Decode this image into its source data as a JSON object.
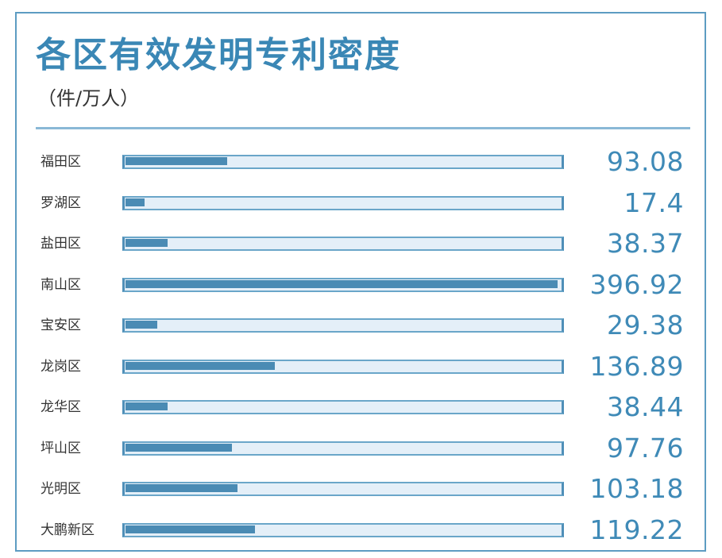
{
  "chart_data": {
    "type": "bar",
    "orientation": "horizontal",
    "title": "各区有效发明专利密度",
    "subtitle": "（件/万人）",
    "categories": [
      "福田区",
      "罗湖区",
      "盐田区",
      "南山区",
      "宝安区",
      "龙岗区",
      "龙华区",
      "坪山区",
      "光明区",
      "大鹏新区"
    ],
    "values": [
      93.08,
      17.4,
      38.37,
      396.92,
      29.38,
      136.89,
      38.44,
      97.76,
      103.18,
      119.22
    ],
    "value_labels": [
      "93.08",
      "17.4",
      "38.37",
      "396.92",
      "29.38",
      "136.89",
      "38.44",
      "97.76",
      "103.18",
      "119.22"
    ],
    "xlim": [
      0,
      396.92
    ],
    "grid": false,
    "legend": "none",
    "colors": {
      "bar": "#4a8bb4",
      "track": "#e4eff8",
      "title": "#3a87b5",
      "value": "#3f8ab7",
      "frame": "#5d9cc2"
    }
  }
}
